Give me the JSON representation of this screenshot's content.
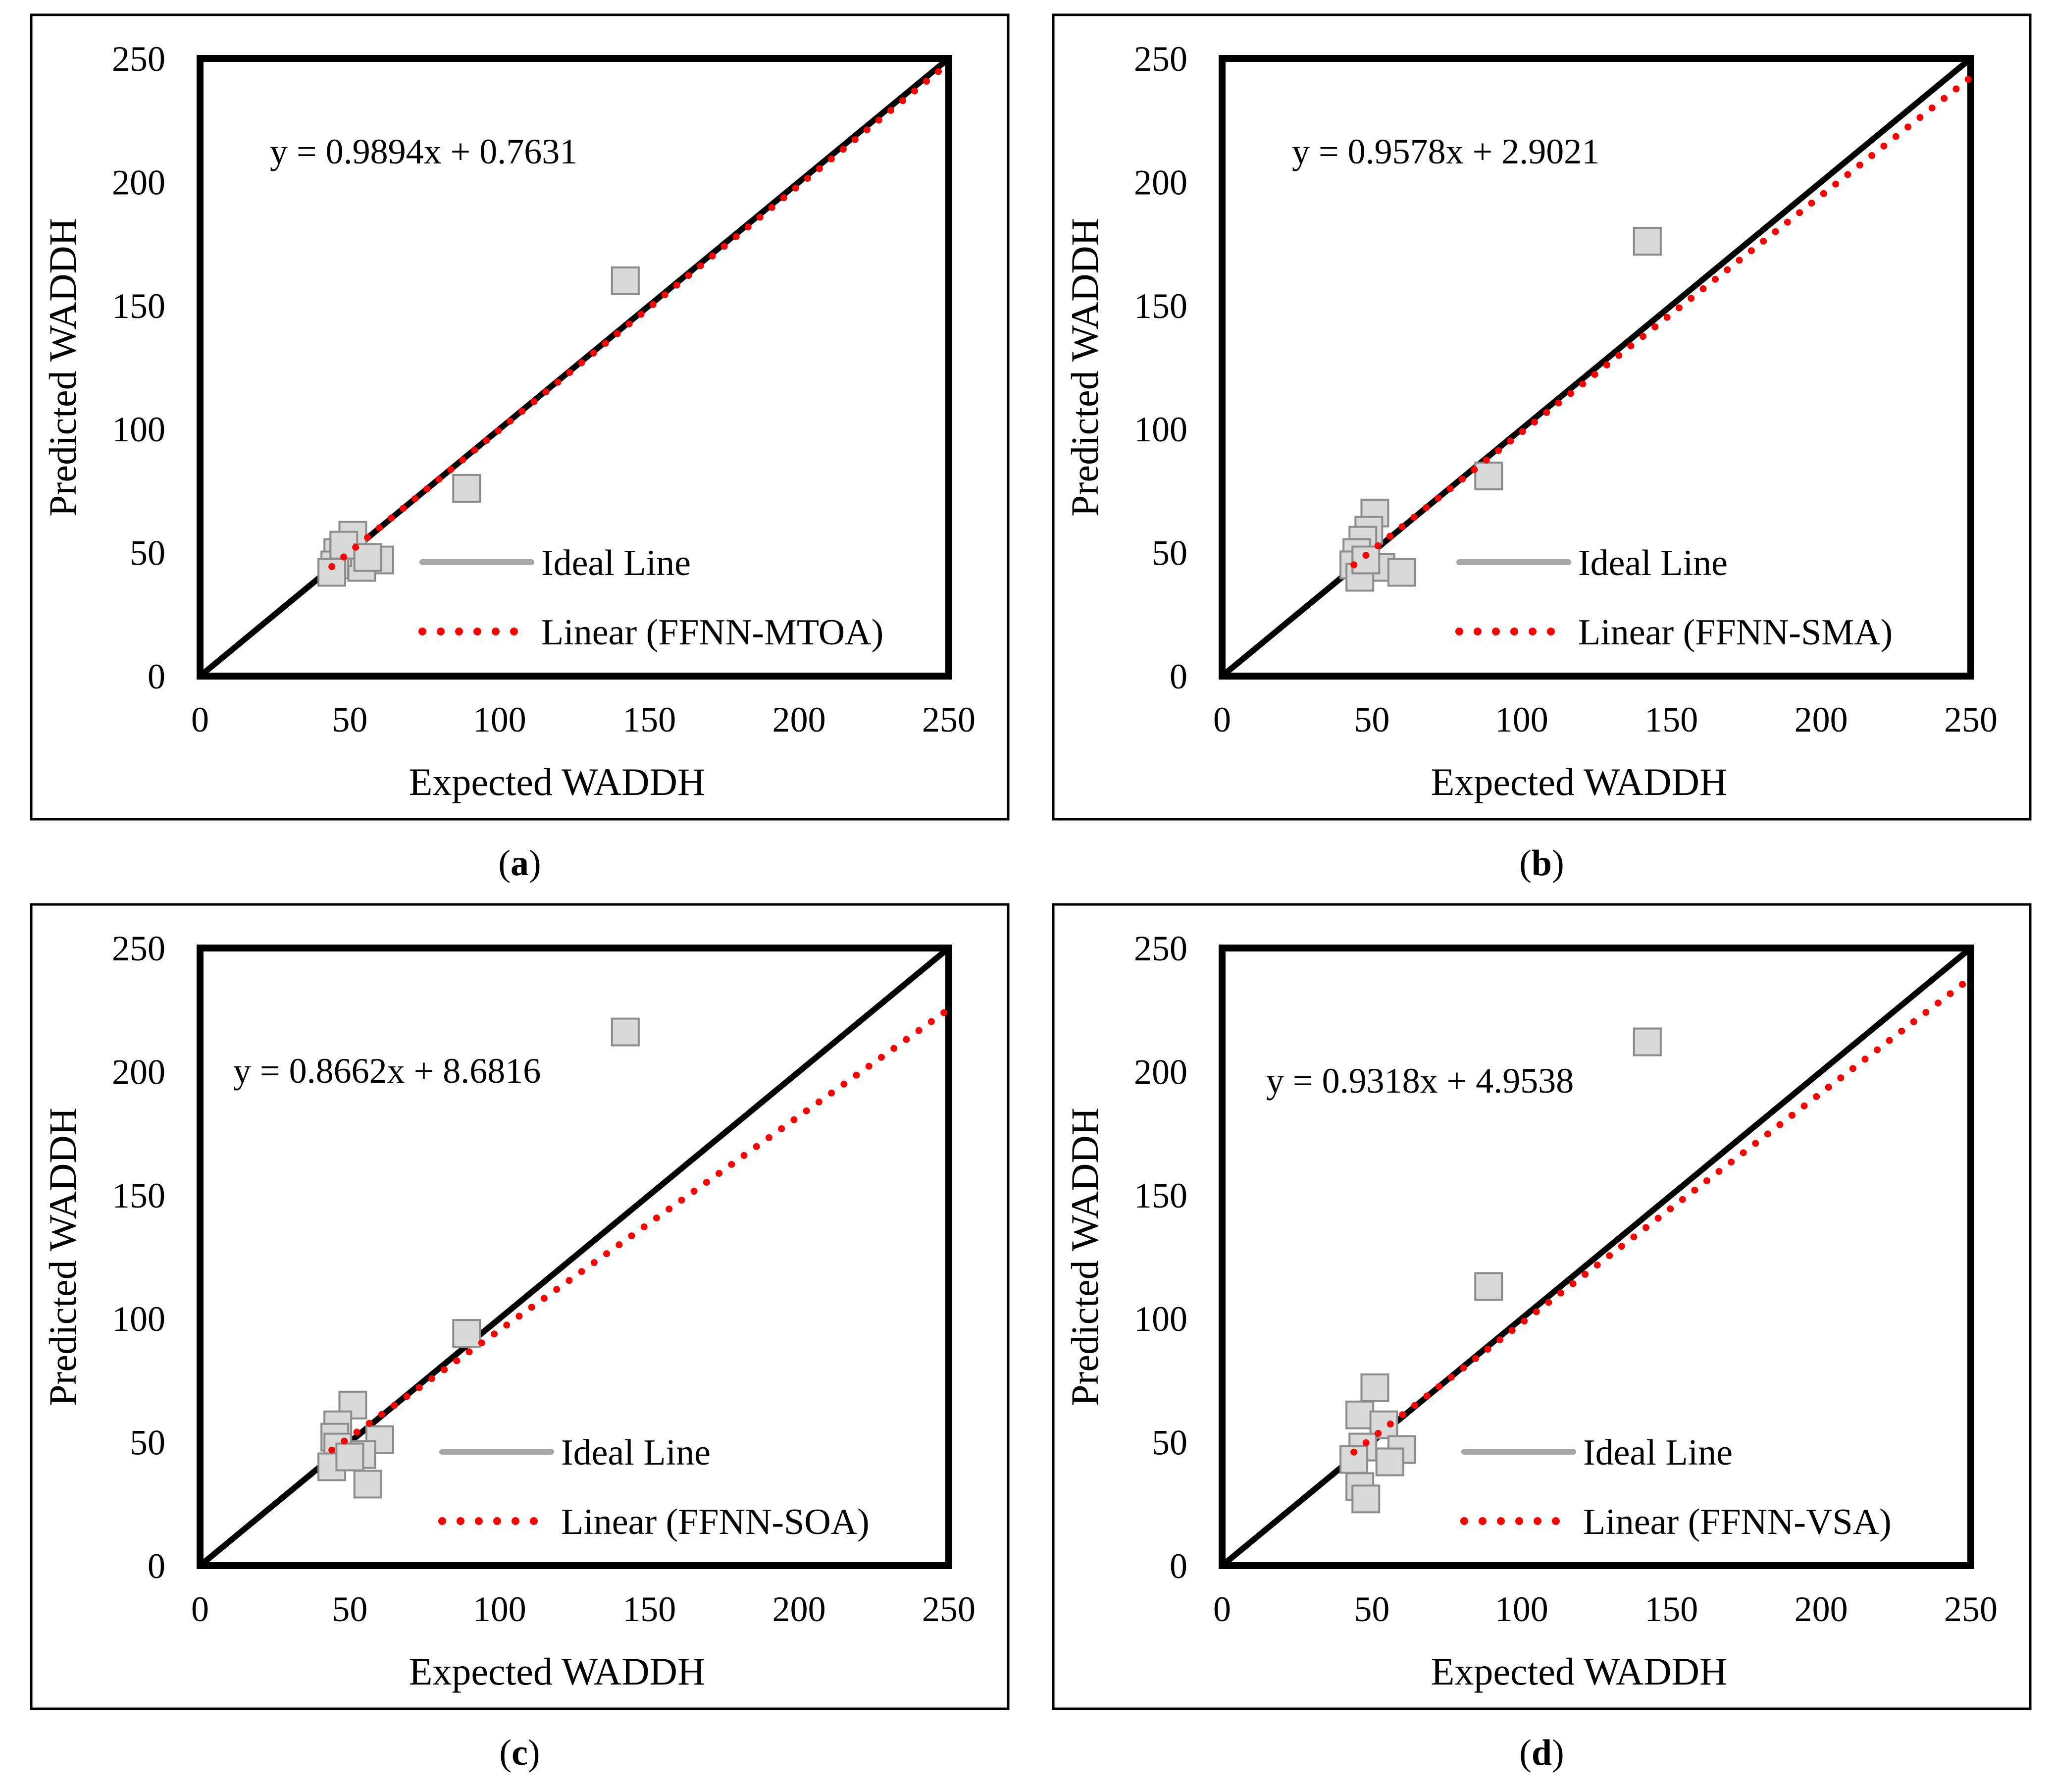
{
  "figure": {
    "ideal_line_color": "#000000",
    "ideal_legend_color": "#a6a6a6",
    "fit_line_color": "#ff0000",
    "marker_fill": "#d9d9d9",
    "marker_stroke": "#8c8c8c"
  },
  "chart_data": [
    {
      "type": "scatter",
      "panel_label": "a",
      "xlabel": "Expected WADDH",
      "ylabel": "Predicted WADDH",
      "xlim": [
        0,
        250
      ],
      "ylim": [
        0,
        250
      ],
      "xticks": [
        "0",
        "50",
        "100",
        "150",
        "200",
        "250"
      ],
      "yticks": [
        "0",
        "50",
        "100",
        "150",
        "200",
        "250"
      ],
      "equation": "y = 0.9894x + 0.7631",
      "fit": {
        "slope": 0.9894,
        "intercept": 0.7631,
        "x_range": [
          44,
          250
        ]
      },
      "legend": {
        "ideal": "Ideal Line",
        "fit": "Linear (FFNN-MTOA)"
      },
      "series": [
        {
          "name": "FFNN-MTOA",
          "points": [
            [
              142,
              160
            ],
            [
              89,
              76
            ],
            [
              51,
              57
            ],
            [
              60,
              47
            ],
            [
              54,
              44
            ],
            [
              46,
              50
            ],
            [
              45,
              45
            ],
            [
              48,
              53
            ],
            [
              44,
              42
            ],
            [
              56,
              48
            ]
          ]
        }
      ]
    },
    {
      "type": "scatter",
      "panel_label": "b",
      "xlabel": "Expected WADDH",
      "ylabel": "Predicted WADDH",
      "xlim": [
        0,
        250
      ],
      "ylim": [
        0,
        250
      ],
      "xticks": [
        "0",
        "50",
        "100",
        "150",
        "200",
        "250"
      ],
      "yticks": [
        "0",
        "50",
        "100",
        "150",
        "200",
        "250"
      ],
      "equation": "y = 0.9578x + 2.9021",
      "fit": {
        "slope": 0.9578,
        "intercept": 2.9021,
        "x_range": [
          44,
          250
        ]
      },
      "legend": {
        "ideal": "Ideal Line",
        "fit": "Linear (FFNN-SMA)"
      },
      "series": [
        {
          "name": "FFNN-SMA",
          "points": [
            [
              142,
              176
            ],
            [
              89,
              81
            ],
            [
              51,
              66
            ],
            [
              49,
              59
            ],
            [
              47,
              55
            ],
            [
              45,
              50
            ],
            [
              44,
              45
            ],
            [
              53,
              44
            ],
            [
              60,
              42
            ],
            [
              46,
              40
            ],
            [
              48,
              47
            ]
          ]
        }
      ]
    },
    {
      "type": "scatter",
      "panel_label": "c",
      "xlabel": "Expected WADDH",
      "ylabel": "Predicted WADDH",
      "xlim": [
        0,
        250
      ],
      "ylim": [
        0,
        250
      ],
      "xticks": [
        "0",
        "50",
        "100",
        "150",
        "200",
        "250"
      ],
      "yticks": [
        "0",
        "50",
        "100",
        "150",
        "200",
        "250"
      ],
      "equation": "y = 0.8662x + 8.6816",
      "fit": {
        "slope": 0.8662,
        "intercept": 8.6816,
        "x_range": [
          44,
          250
        ]
      },
      "legend": {
        "ideal": "Ideal Line",
        "fit": "Linear (FFNN-SOA)"
      },
      "series": [
        {
          "name": "FFNN-SOA",
          "points": [
            [
              142,
              216
            ],
            [
              89,
              94
            ],
            [
              51,
              65
            ],
            [
              46,
              57
            ],
            [
              60,
              51
            ],
            [
              45,
              52
            ],
            [
              54,
              45
            ],
            [
              46,
              48
            ],
            [
              56,
              33
            ],
            [
              44,
              40
            ],
            [
              50,
              44
            ]
          ]
        }
      ]
    },
    {
      "type": "scatter",
      "panel_label": "d",
      "xlabel": "Expected WADDH",
      "ylabel": "Predicted WADDH",
      "xlim": [
        0,
        250
      ],
      "ylim": [
        0,
        250
      ],
      "xticks": [
        "0",
        "50",
        "100",
        "150",
        "200",
        "250"
      ],
      "yticks": [
        "0",
        "50",
        "100",
        "150",
        "200",
        "250"
      ],
      "equation": "y = 0.9318x + 4.9538",
      "fit": {
        "slope": 0.9318,
        "intercept": 4.9538,
        "x_range": [
          44,
          250
        ]
      },
      "legend": {
        "ideal": "Ideal Line",
        "fit": "Linear (FFNN-VSA)"
      },
      "series": [
        {
          "name": "FFNN-VSA",
          "points": [
            [
              142,
              212
            ],
            [
              89,
              113
            ],
            [
              51,
              72
            ],
            [
              46,
              61
            ],
            [
              54,
              57
            ],
            [
              60,
              47
            ],
            [
              56,
              42
            ],
            [
              47,
              48
            ],
            [
              46,
              32
            ],
            [
              48,
              27
            ],
            [
              44,
              43
            ]
          ]
        }
      ]
    }
  ]
}
